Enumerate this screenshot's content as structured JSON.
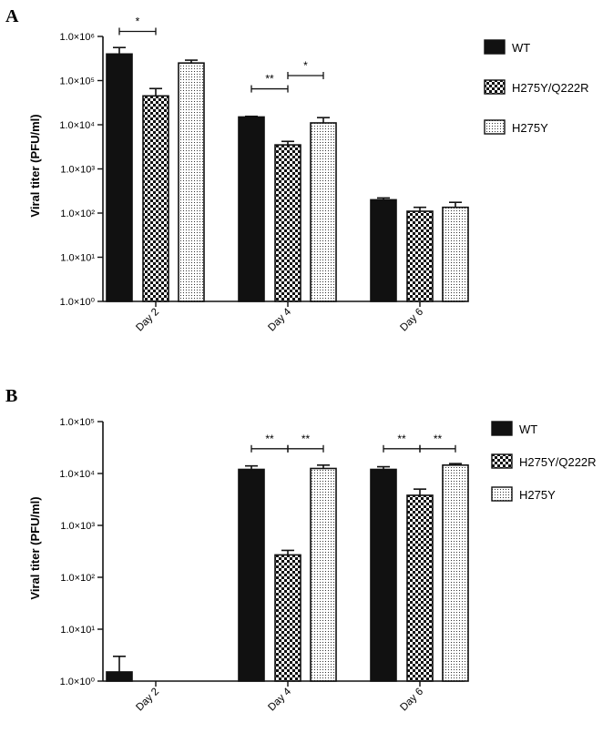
{
  "chart_data": [
    {
      "panel": "A",
      "type": "bar",
      "yscale": "log",
      "ylabel": "Viral titer (PFU/ml)",
      "ylim_exp": [
        0,
        6
      ],
      "yticks": [
        "1.0×10⁰",
        "1.0×10¹",
        "1.0×10²",
        "1.0×10³",
        "1.0×10⁴",
        "1.0×10⁵",
        "1.0×10⁶"
      ],
      "categories": [
        "Day 2",
        "Day 4",
        "Day 6"
      ],
      "series": [
        {
          "name": "WT",
          "fill": "solid",
          "values": [
            400000,
            15000,
            200
          ],
          "err_upper": [
            560000,
            15500,
            220
          ]
        },
        {
          "name": "H275Y/Q222R",
          "fill": "checker",
          "values": [
            45000,
            3500,
            110
          ],
          "err_upper": [
            66000,
            4200,
            135
          ]
        },
        {
          "name": "H275Y",
          "fill": "dots",
          "values": [
            250000,
            11000,
            135
          ],
          "err_upper": [
            290000,
            14500,
            175
          ]
        }
      ],
      "significance": [
        {
          "category": 0,
          "from": 0,
          "to": 1,
          "label": "*",
          "y": 1300000
        },
        {
          "category": 1,
          "from": 0,
          "to": 1,
          "label": "**",
          "y": 65000
        },
        {
          "category": 1,
          "from": 1,
          "to": 2,
          "label": "*",
          "y": 130000
        }
      ],
      "legend_position": "top-right"
    },
    {
      "panel": "B",
      "type": "bar",
      "yscale": "log",
      "ylabel": "Viral titer (PFU/ml)",
      "ylim_exp": [
        0,
        5
      ],
      "yticks": [
        "1.0×10⁰",
        "1.0×10¹",
        "1.0×10²",
        "1.0×10³",
        "1.0×10⁴",
        "1.0×10⁵"
      ],
      "categories": [
        "Day 2",
        "Day 4",
        "Day 6"
      ],
      "series": [
        {
          "name": "WT",
          "fill": "solid",
          "values": [
            1.5,
            12000,
            12000
          ],
          "err_upper": [
            3,
            14000,
            13500
          ]
        },
        {
          "name": "H275Y/Q222R",
          "fill": "checker",
          "values": [
            1,
            270,
            3800
          ],
          "err_upper": [
            1,
            330,
            5000
          ]
        },
        {
          "name": "H275Y",
          "fill": "dots",
          "values": [
            1,
            12500,
            14500
          ],
          "err_upper": [
            1,
            14500,
            15500
          ]
        }
      ],
      "significance": [
        {
          "category": 1,
          "from": 0,
          "to": 1,
          "label": "**",
          "y": 30000
        },
        {
          "category": 1,
          "from": 1,
          "to": 2,
          "label": "**",
          "y": 30000
        },
        {
          "category": 2,
          "from": 0,
          "to": 1,
          "label": "**",
          "y": 30000
        },
        {
          "category": 2,
          "from": 1,
          "to": 2,
          "label": "**",
          "y": 30000
        }
      ],
      "legend_position": "top-right"
    }
  ]
}
